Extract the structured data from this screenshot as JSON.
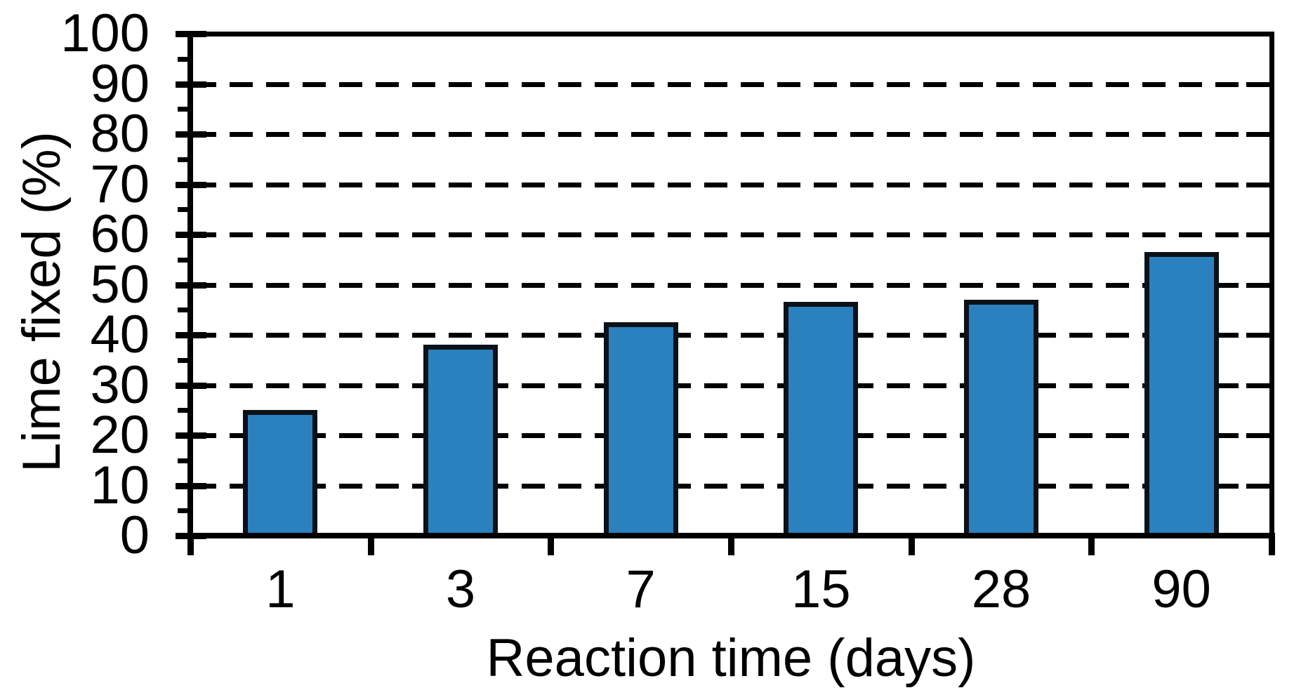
{
  "figure": {
    "background": "#ffffff",
    "text_color": "#000000"
  },
  "chart_data": {
    "type": "bar",
    "title": "",
    "xlabel": "Reaction time (days)",
    "ylabel": "Lime fixed (%)",
    "categories": [
      "1",
      "3",
      "7",
      "15",
      "28",
      "90"
    ],
    "values": [
      24.5,
      37.5,
      42,
      46,
      46.5,
      56
    ],
    "series": [
      {
        "name": "Lime fixed",
        "values": [
          24.5,
          37.5,
          42,
          46,
          46.5,
          56
        ]
      }
    ],
    "ylim": [
      0,
      100
    ],
    "y_tick_labels": [
      "0",
      "10",
      "20",
      "30",
      "40",
      "50",
      "60",
      "70",
      "80",
      "90",
      "100"
    ],
    "y_major_step": 10,
    "y_minor_step": 5,
    "grid": "horizontal dashed black lines at every major tick (10..90), solid frame top and right",
    "legend": "none",
    "bar_color": "#2B81BE",
    "bar_border_color": "#0B1118",
    "axis_color": "#000000",
    "grid_color": "#000000"
  }
}
